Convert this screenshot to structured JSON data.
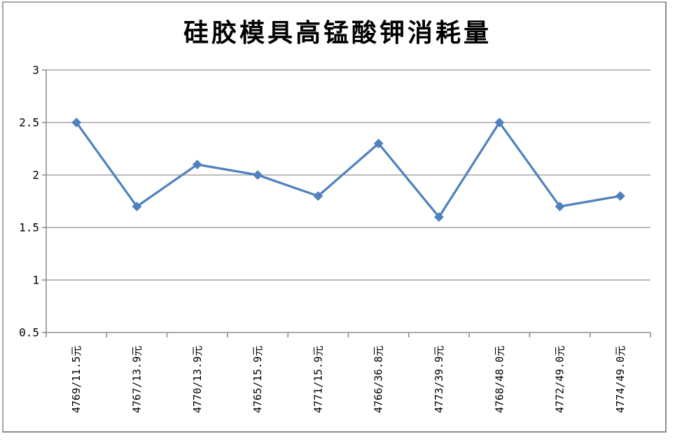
{
  "chart": {
    "title": "硅胶模具高锰酸钾消耗量"
  },
  "chart_data": {
    "type": "line",
    "title": "硅胶模具高锰酸钾消耗量",
    "categories": [
      "4769/11.5元",
      "4767/13.9元",
      "4770/13.9元",
      "4765/15.9元",
      "4771/15.9元",
      "4766/36.8元",
      "4773/39.9元",
      "4768/48.0元",
      "4772/49.0元",
      "4774/49.0元"
    ],
    "values": [
      2.5,
      1.7,
      2.1,
      2.0,
      1.8,
      2.3,
      1.6,
      2.5,
      1.7,
      1.8
    ],
    "xlabel": "",
    "ylabel": "",
    "ylim": [
      0.5,
      3
    ],
    "ytick_step": 0.5,
    "ytick_labels": [
      "0.5",
      "1",
      "1.5",
      "2",
      "2.5",
      "3"
    ],
    "grid": true,
    "legend": false,
    "marker": "diamond",
    "colors": {
      "series": "#4f81bd",
      "gridline": "#a6a6a6",
      "axis": "#8f8f8f",
      "text": "#000000",
      "frame_border": "#a6a6a6",
      "background": "#ffffff"
    }
  }
}
